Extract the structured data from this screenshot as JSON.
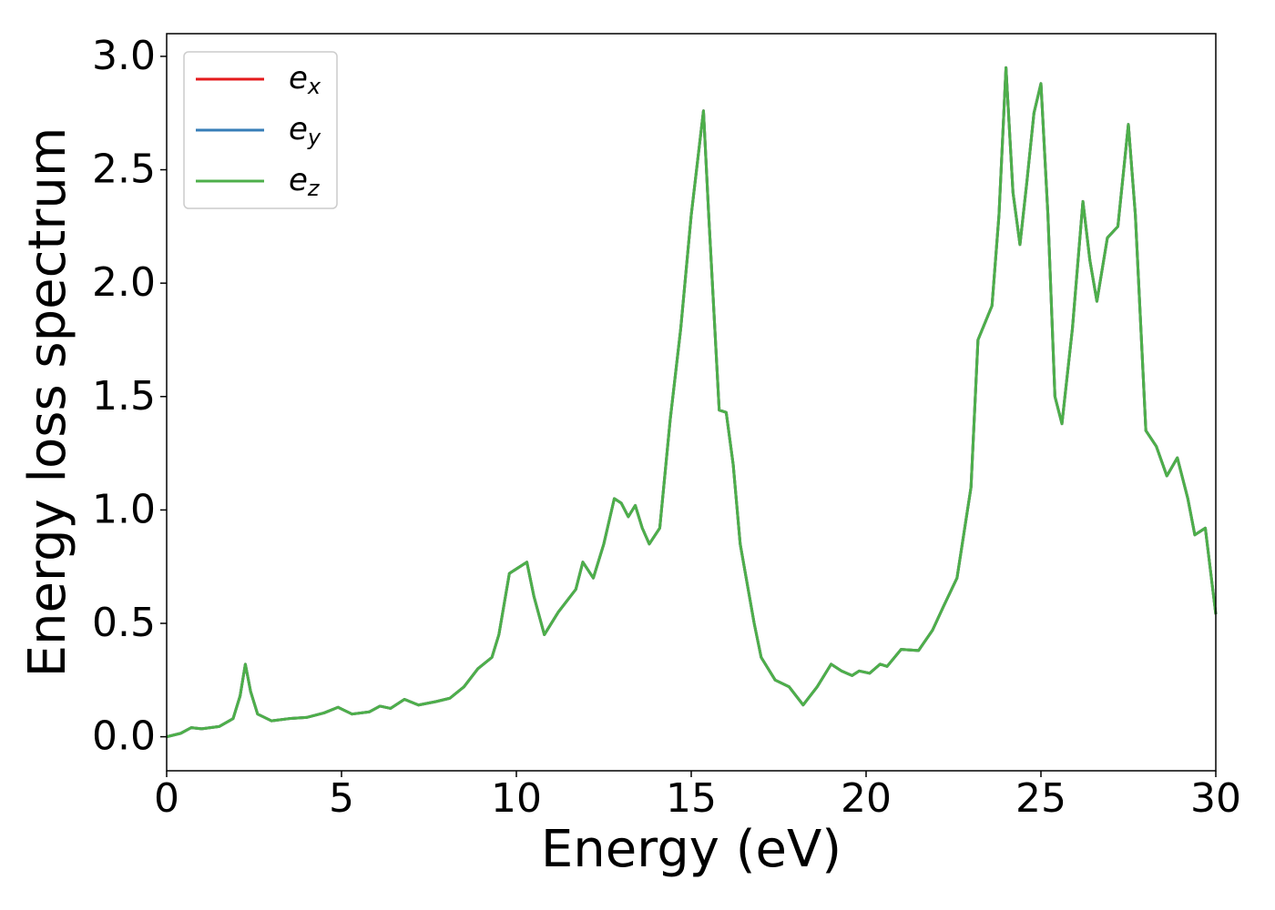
{
  "chart_data": {
    "type": "line",
    "x_label": "Energy (eV)",
    "y_label": "Energy loss spectrum",
    "xlim": [
      0,
      30
    ],
    "ylim": [
      -0.15,
      3.1
    ],
    "xticks": [
      0,
      5,
      10,
      15,
      20,
      25,
      30
    ],
    "yticks": [
      {
        "value": 0,
        "label": "0.0"
      },
      {
        "value": 0.5,
        "label": "0.5"
      },
      {
        "value": 1,
        "label": "1.0"
      },
      {
        "value": 1.5,
        "label": "1.5"
      },
      {
        "value": 2,
        "label": "2.0"
      },
      {
        "value": 2.5,
        "label": "2.5"
      },
      {
        "value": 3,
        "label": "3.0"
      }
    ],
    "legend": "upper left",
    "x": [
      0,
      0.4,
      0.7,
      1.0,
      1.5,
      1.9,
      2.1,
      2.25,
      2.4,
      2.6,
      3.0,
      3.5,
      4.0,
      4.5,
      4.9,
      5.3,
      5.8,
      6.1,
      6.4,
      6.8,
      7.2,
      7.7,
      8.1,
      8.5,
      8.9,
      9.3,
      9.5,
      9.8,
      10.0,
      10.3,
      10.5,
      10.8,
      11.2,
      11.7,
      11.9,
      12.2,
      12.5,
      12.8,
      13.0,
      13.2,
      13.4,
      13.6,
      13.8,
      14.1,
      14.4,
      14.7,
      15.0,
      15.35,
      15.5,
      15.8,
      16.0,
      16.2,
      16.4,
      16.8,
      17.0,
      17.4,
      17.8,
      18.2,
      18.6,
      19.0,
      19.3,
      19.6,
      19.8,
      20.1,
      20.4,
      20.6,
      21.0,
      21.5,
      21.9,
      22.2,
      22.6,
      23.0,
      23.2,
      23.6,
      23.8,
      24.0,
      24.2,
      24.4,
      24.6,
      24.8,
      25.0,
      25.2,
      25.4,
      25.6,
      25.9,
      26.2,
      26.4,
      26.6,
      26.9,
      27.2,
      27.5,
      27.7,
      28.0,
      28.3,
      28.6,
      28.9,
      29.2,
      29.4,
      29.7,
      30.0
    ],
    "series": [
      {
        "name": "ex",
        "color": "#e41a1c",
        "values": [
          0,
          0.015,
          0.04,
          0.035,
          0.045,
          0.08,
          0.18,
          0.32,
          0.2,
          0.1,
          0.07,
          0.08,
          0.085,
          0.105,
          0.13,
          0.1,
          0.11,
          0.135,
          0.125,
          0.165,
          0.14,
          0.155,
          0.17,
          0.22,
          0.3,
          0.35,
          0.45,
          0.72,
          0.74,
          0.77,
          0.62,
          0.45,
          0.55,
          0.65,
          0.77,
          0.7,
          0.85,
          1.05,
          1.03,
          0.97,
          1.02,
          0.92,
          0.85,
          0.92,
          1.4,
          1.8,
          2.3,
          2.76,
          2.3,
          1.44,
          1.43,
          1.2,
          0.85,
          0.5,
          0.35,
          0.25,
          0.22,
          0.14,
          0.22,
          0.32,
          0.29,
          0.27,
          0.29,
          0.28,
          0.32,
          0.31,
          0.385,
          0.38,
          0.47,
          0.57,
          0.7,
          1.1,
          1.75,
          1.9,
          2.3,
          2.95,
          2.4,
          2.17,
          2.45,
          2.75,
          2.88,
          2.3,
          1.5,
          1.38,
          1.8,
          2.36,
          2.1,
          1.92,
          2.2,
          2.25,
          2.7,
          2.3,
          1.35,
          1.28,
          1.15,
          1.23,
          1.05,
          0.89,
          0.92,
          0.54
        ]
      },
      {
        "name": "ey",
        "color": "#377eb8",
        "values": [
          0,
          0.015,
          0.04,
          0.035,
          0.045,
          0.08,
          0.18,
          0.32,
          0.2,
          0.1,
          0.07,
          0.08,
          0.085,
          0.105,
          0.13,
          0.1,
          0.11,
          0.135,
          0.125,
          0.165,
          0.14,
          0.155,
          0.17,
          0.22,
          0.3,
          0.35,
          0.45,
          0.72,
          0.74,
          0.77,
          0.62,
          0.45,
          0.55,
          0.65,
          0.77,
          0.7,
          0.85,
          1.05,
          1.03,
          0.97,
          1.02,
          0.92,
          0.85,
          0.92,
          1.4,
          1.8,
          2.3,
          2.76,
          2.3,
          1.44,
          1.43,
          1.2,
          0.85,
          0.5,
          0.35,
          0.25,
          0.22,
          0.14,
          0.22,
          0.32,
          0.29,
          0.27,
          0.29,
          0.28,
          0.32,
          0.31,
          0.385,
          0.38,
          0.47,
          0.57,
          0.7,
          1.1,
          1.75,
          1.9,
          2.3,
          2.95,
          2.4,
          2.17,
          2.45,
          2.75,
          2.88,
          2.3,
          1.5,
          1.38,
          1.8,
          2.36,
          2.1,
          1.92,
          2.2,
          2.25,
          2.7,
          2.3,
          1.35,
          1.28,
          1.15,
          1.23,
          1.05,
          0.89,
          0.92,
          0.54
        ]
      },
      {
        "name": "ez",
        "color": "#4daf4a",
        "values": [
          0,
          0.015,
          0.04,
          0.035,
          0.045,
          0.08,
          0.18,
          0.32,
          0.2,
          0.1,
          0.07,
          0.08,
          0.085,
          0.105,
          0.13,
          0.1,
          0.11,
          0.135,
          0.125,
          0.165,
          0.14,
          0.155,
          0.17,
          0.22,
          0.3,
          0.35,
          0.45,
          0.72,
          0.74,
          0.77,
          0.62,
          0.45,
          0.55,
          0.65,
          0.77,
          0.7,
          0.85,
          1.05,
          1.03,
          0.97,
          1.02,
          0.92,
          0.85,
          0.92,
          1.4,
          1.8,
          2.3,
          2.76,
          2.3,
          1.44,
          1.43,
          1.2,
          0.85,
          0.5,
          0.35,
          0.25,
          0.22,
          0.14,
          0.22,
          0.32,
          0.29,
          0.27,
          0.29,
          0.28,
          0.32,
          0.31,
          0.385,
          0.38,
          0.47,
          0.57,
          0.7,
          1.1,
          1.75,
          1.9,
          2.3,
          2.95,
          2.4,
          2.17,
          2.45,
          2.75,
          2.88,
          2.3,
          1.5,
          1.38,
          1.8,
          2.36,
          2.1,
          1.92,
          2.2,
          2.25,
          2.7,
          2.3,
          1.35,
          1.28,
          1.15,
          1.23,
          1.05,
          0.89,
          0.92,
          0.54
        ]
      }
    ]
  }
}
